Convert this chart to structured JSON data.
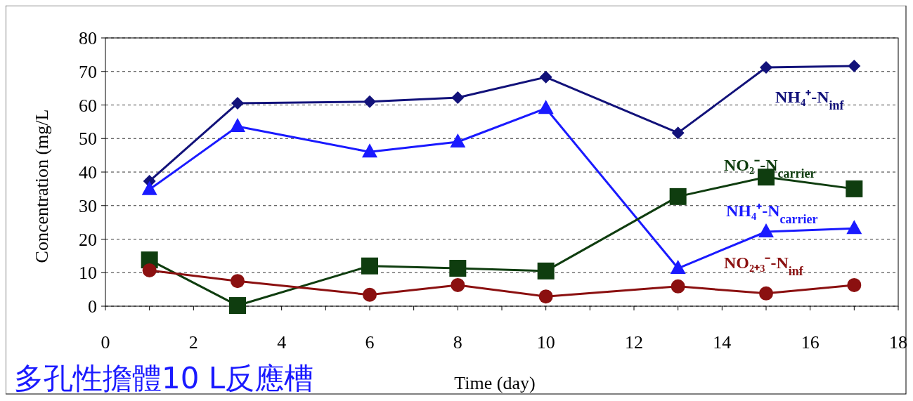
{
  "chart_data": {
    "type": "line",
    "xlabel": "Time (day)",
    "ylabel": "Concentration (mg/L",
    "xlim": [
      0,
      18
    ],
    "xticks": [
      0,
      2,
      4,
      6,
      8,
      10,
      12,
      14,
      16,
      18
    ],
    "ylim": [
      0,
      80
    ],
    "yticks": [
      0,
      10,
      20,
      30,
      40,
      50,
      60,
      70,
      80
    ],
    "grid": "y",
    "annotations": [
      "多孔性擔體10 L反應槽"
    ],
    "series": [
      {
        "name": "NH₄⁺-N$_{inf}$",
        "color": "#12127a",
        "marker": "diamond",
        "x": [
          1,
          3,
          6,
          8,
          10,
          13,
          15,
          17
        ],
        "values": [
          37.3,
          60.5,
          61,
          62.2,
          68.3,
          51.7,
          71.2,
          71.6
        ]
      },
      {
        "name": "NH₄⁺-N$_{carrier}$",
        "color": "#1a1aff",
        "marker": "triangle",
        "x": [
          1,
          3,
          6,
          8,
          10,
          13,
          15,
          17
        ],
        "values": [
          34.8,
          53.6,
          46,
          49,
          59,
          11.3,
          22.2,
          23.2
        ]
      },
      {
        "name": "NO₂⁻-N$_{carrier}$",
        "color": "#0f3d0f",
        "marker": "square",
        "x": [
          1,
          3,
          6,
          8,
          10,
          13,
          15,
          17
        ],
        "values": [
          13.8,
          0.2,
          12,
          11.3,
          10.5,
          32.7,
          38.5,
          35
        ]
      },
      {
        "name": "NO₂₊₃⁻-N$_{inf}$",
        "color": "#8b1010",
        "marker": "circle",
        "x": [
          1,
          3,
          6,
          8,
          10,
          13,
          15,
          17
        ],
        "values": [
          10.7,
          7.5,
          3.4,
          6.3,
          2.9,
          5.9,
          3.8,
          6.3
        ]
      }
    ]
  }
}
